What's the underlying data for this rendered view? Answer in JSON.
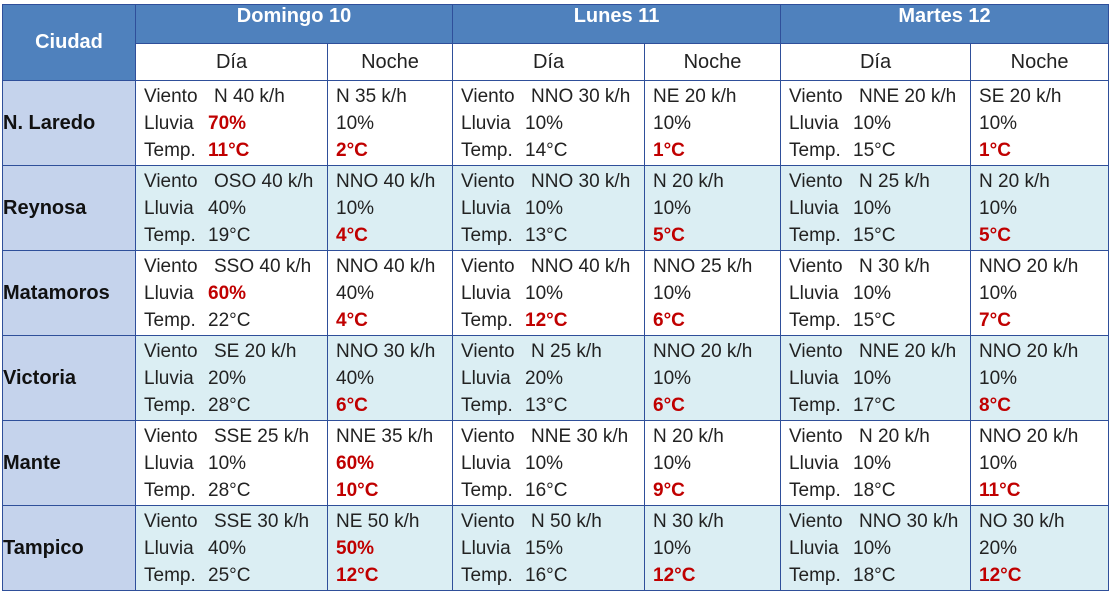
{
  "header": {
    "city_label": "Ciudad",
    "days": [
      "Domingo 10",
      "Lunes 11",
      "Martes 12"
    ],
    "day_label": "Día",
    "night_label": "Noche"
  },
  "labels": {
    "wind": "Viento",
    "rain": "Lluvia",
    "temp": "Temp."
  },
  "colors": {
    "header_blue": "#4f81bd",
    "city_bg": "#c5d3ec",
    "alt_row": "#dbeef3",
    "highlight": "#c00000"
  },
  "rows": [
    {
      "city": "N. Laredo",
      "cells": [
        {
          "wind": "N 40 k/h",
          "rain": "70%",
          "rain_hot": true,
          "temp": "11°C",
          "temp_hot": true
        },
        {
          "wind": "N 35 k/h",
          "rain": "10%",
          "temp": "2°C",
          "temp_hot": true
        },
        {
          "wind": "NNO 30 k/h",
          "rain": "10%",
          "temp": "14°C"
        },
        {
          "wind": "NE 20 k/h",
          "rain": "10%",
          "temp": "1°C",
          "temp_hot": true
        },
        {
          "wind": "NNE 20 k/h",
          "rain": "10%",
          "temp": "15°C"
        },
        {
          "wind": "SE 20 k/h",
          "rain": "10%",
          "temp": "1°C",
          "temp_hot": true
        }
      ]
    },
    {
      "city": "Reynosa",
      "cells": [
        {
          "wind": "OSO 40 k/h",
          "rain": "40%",
          "temp": "19°C"
        },
        {
          "wind": "NNO 40 k/h",
          "rain": "10%",
          "temp": "4°C",
          "temp_hot": true
        },
        {
          "wind": "NNO 30 k/h",
          "rain": "10%",
          "temp": "13°C"
        },
        {
          "wind": "N 20 k/h",
          "rain": "10%",
          "temp": "5°C",
          "temp_hot": true
        },
        {
          "wind": "N 25 k/h",
          "rain": "10%",
          "temp": "15°C"
        },
        {
          "wind": "N 20 k/h",
          "rain": "10%",
          "temp": "5°C",
          "temp_hot": true
        }
      ]
    },
    {
      "city": "Matamoros",
      "cells": [
        {
          "wind": "SSO 40 k/h",
          "rain": "60%",
          "rain_hot": true,
          "temp": "22°C"
        },
        {
          "wind": "NNO 40 k/h",
          "rain": "40%",
          "temp": "4°C",
          "temp_hot": true
        },
        {
          "wind": "NNO 40 k/h",
          "rain": "10%",
          "temp": "12°C",
          "temp_hot": true
        },
        {
          "wind": "NNO 25 k/h",
          "rain": "10%",
          "temp": "6°C",
          "temp_hot": true
        },
        {
          "wind": "N 30 k/h",
          "rain": "10%",
          "temp": "15°C"
        },
        {
          "wind": "NNO 20 k/h",
          "rain": "10%",
          "temp": "7°C",
          "temp_hot": true
        }
      ]
    },
    {
      "city": "Victoria",
      "cells": [
        {
          "wind": "SE 20 k/h",
          "rain": "20%",
          "temp": "28°C"
        },
        {
          "wind": "NNO 30 k/h",
          "rain": "40%",
          "temp": "6°C",
          "temp_hot": true
        },
        {
          "wind": "N 25 k/h",
          "rain": "20%",
          "temp": "13°C"
        },
        {
          "wind": "NNO 20 k/h",
          "rain": "10%",
          "temp": "6°C",
          "temp_hot": true
        },
        {
          "wind": "NNE 20 k/h",
          "rain": "10%",
          "temp": "17°C"
        },
        {
          "wind": "NNO 20 k/h",
          "rain": "10%",
          "temp": "8°C",
          "temp_hot": true
        }
      ]
    },
    {
      "city": "Mante",
      "cells": [
        {
          "wind": "SSE 25 k/h",
          "rain": "10%",
          "temp": "28°C"
        },
        {
          "wind": "NNE 35 k/h",
          "rain": "60%",
          "rain_hot": true,
          "temp": "10°C",
          "temp_hot": true
        },
        {
          "wind": "NNE 30 k/h",
          "rain": "10%",
          "temp": "16°C"
        },
        {
          "wind": "N 20 k/h",
          "rain": "10%",
          "temp": "9°C",
          "temp_hot": true
        },
        {
          "wind": "N 20 k/h",
          "rain": "10%",
          "temp": "18°C"
        },
        {
          "wind": "NNO 20 k/h",
          "rain": "10%",
          "temp": "11°C",
          "temp_hot": true
        }
      ]
    },
    {
      "city": "Tampico",
      "cells": [
        {
          "wind": "SSE 30 k/h",
          "rain": "40%",
          "temp": "25°C"
        },
        {
          "wind": "NE 50 k/h",
          "rain": "50%",
          "rain_hot": true,
          "temp": "12°C",
          "temp_hot": true
        },
        {
          "wind": "N 50 k/h",
          "rain": "15%",
          "temp": "16°C"
        },
        {
          "wind": "N 30 k/h",
          "rain": "10%",
          "temp": "12°C",
          "temp_hot": true
        },
        {
          "wind": "NNO 30 k/h",
          "rain": "10%",
          "temp": "18°C"
        },
        {
          "wind": "NO 30 k/h",
          "rain": "20%",
          "temp": "12°C",
          "temp_hot": true
        }
      ]
    }
  ]
}
